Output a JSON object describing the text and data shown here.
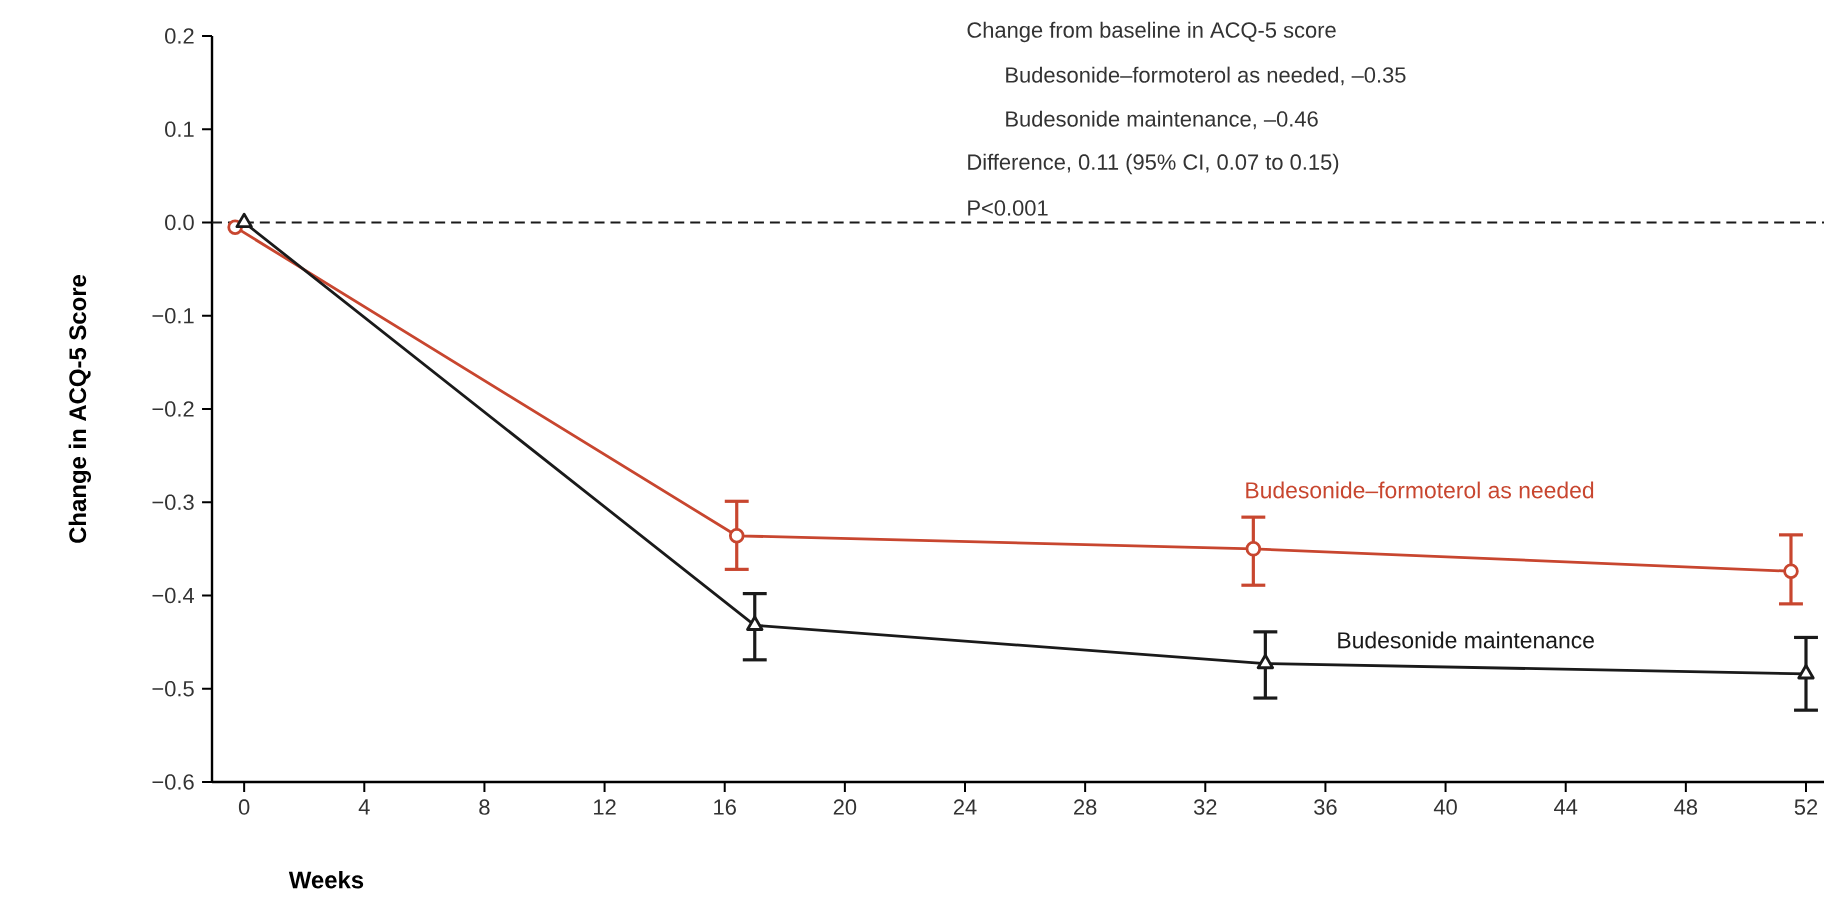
{
  "chart_data": {
    "type": "line",
    "xlabel": "Weeks",
    "ylabel": "Change in ACQ-5 Score",
    "annotations": [
      "Change from baseline in ACQ-5 score",
      "Budesonide–formoterol as needed, –0.35",
      "Budesonide maintenance, –0.46",
      "Difference, 0.11 (95% CI, 0.07 to 0.15)",
      "P<0.001"
    ],
    "series": [
      {
        "name": "Budesonide–formoterol as needed",
        "color": "#c8462f",
        "marker": "circle",
        "x": [
          -0.3,
          16.4,
          33.6,
          51.5
        ],
        "values": [
          -0.005,
          -0.336,
          -0.35,
          -0.374
        ],
        "errors": [
          null,
          [
            -0.372,
            -0.299
          ],
          [
            -0.389,
            -0.316
          ],
          [
            -0.409,
            -0.335
          ]
        ]
      },
      {
        "name": "Budesonide maintenance",
        "color": "#1a1a1a",
        "marker": "triangle",
        "x": [
          0,
          17,
          34,
          52
        ],
        "values": [
          0,
          -0.432,
          -0.473,
          -0.484
        ],
        "errors": [
          null,
          [
            -0.469,
            -0.398
          ],
          [
            -0.51,
            -0.439
          ],
          [
            -0.523,
            -0.445
          ]
        ]
      }
    ],
    "xlim": [
      -1.07,
      52.6
    ],
    "ylim": [
      -0.6,
      0.2
    ],
    "xticks": [
      0,
      4,
      8,
      12,
      16,
      20,
      24,
      28,
      32,
      36,
      40,
      44,
      48,
      52
    ],
    "yticks": [
      {
        "value": -0.6,
        "label": "−0.6"
      },
      {
        "value": -0.5,
        "label": "−0.5"
      },
      {
        "value": -0.4,
        "label": "−0.4"
      },
      {
        "value": -0.3,
        "label": "−0.3"
      },
      {
        "value": -0.2,
        "label": "−0.2"
      },
      {
        "value": -0.1,
        "label": "−0.1"
      },
      {
        "value": 0,
        "label": "0.0"
      },
      {
        "value": 0.1,
        "label": "0.1"
      },
      {
        "value": 0.2,
        "label": "0.2"
      }
    ],
    "ref_lines": [
      {
        "axis": "y",
        "value": 0,
        "color": "#1a1a1a",
        "line_style": "dashed"
      }
    ]
  }
}
